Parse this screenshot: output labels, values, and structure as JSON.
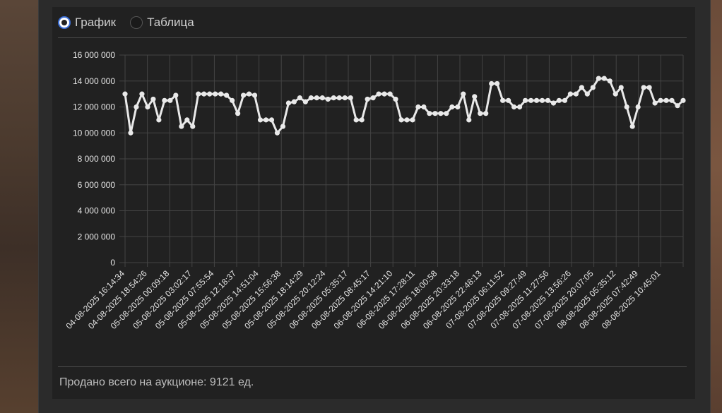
{
  "view_toggle": {
    "options": [
      {
        "label": "График",
        "selected": true
      },
      {
        "label": "Таблица",
        "selected": false
      }
    ]
  },
  "footer": {
    "text": "Продано всего на аукционе: 9121 ед."
  },
  "colors": {
    "line": "#e9e9e9",
    "grid": "#444444",
    "accent": "#3b6fd8"
  },
  "chart_data": {
    "type": "line",
    "ylim": [
      0,
      16000000
    ],
    "yticks": [
      "16 000 000",
      "14 000 000",
      "12 000 000",
      "10 000 000",
      "8 000 000",
      "6 000 000",
      "4 000 000",
      "2 000 000",
      "0"
    ],
    "ytick_values": [
      16000000,
      14000000,
      12000000,
      10000000,
      8000000,
      6000000,
      4000000,
      2000000,
      0
    ],
    "xtick_labels": [
      "04-08-2025 16:14:34",
      "04-08-2025 18:54:26",
      "05-08-2025 00:09:18",
      "05-08-2025 03:02:17",
      "05-08-2025 07:55:54",
      "05-08-2025 12:18:37",
      "05-08-2025 14:51:04",
      "05-08-2025 15:56:38",
      "05-08-2025 18:14:29",
      "05-08-2025 20:12:24",
      "06-08-2025 05:35:17",
      "06-08-2025 08:45:17",
      "06-08-2025 14:21:10",
      "06-08-2025 17:28:11",
      "06-08-2025 18:00:58",
      "06-08-2025 20:33:18",
      "06-08-2025 22:48:13",
      "07-08-2025 06:11:52",
      "07-08-2025 09:27:49",
      "07-08-2025 11:27:56",
      "07-08-2025 13:56:26",
      "07-08-2025 20:07:05",
      "08-08-2025 05:35:12",
      "08-08-2025 07:42:49",
      "08-08-2025 10:45:01"
    ],
    "grid": true,
    "values": [
      13000000,
      10000000,
      12000000,
      13000000,
      12000000,
      12600000,
      11000000,
      12500000,
      12500000,
      12900000,
      10500000,
      11000000,
      10500000,
      13000000,
      13000000,
      13000000,
      13000000,
      13000000,
      12900000,
      12500000,
      11500000,
      12900000,
      13000000,
      12900000,
      11000000,
      11000000,
      11000000,
      10000000,
      10500000,
      12300000,
      12400000,
      12700000,
      12400000,
      12700000,
      12700000,
      12700000,
      12600000,
      12700000,
      12700000,
      12700000,
      12700000,
      11000000,
      11000000,
      12600000,
      12700000,
      13000000,
      13000000,
      13000000,
      12600000,
      11000000,
      11000000,
      11000000,
      12000000,
      12000000,
      11500000,
      11500000,
      11500000,
      11500000,
      12000000,
      12000000,
      13000000,
      11000000,
      12800000,
      11500000,
      11500000,
      13800000,
      13800000,
      12500000,
      12500000,
      12000000,
      12000000,
      12500000,
      12500000,
      12500000,
      12500000,
      12500000,
      12300000,
      12500000,
      12500000,
      13000000,
      13000000,
      13500000,
      13000000,
      13500000,
      14200000,
      14200000,
      14000000,
      13000000,
      13500000,
      12000000,
      10500000,
      12000000,
      13500000,
      13500000,
      12300000,
      12500000,
      12500000,
      12500000,
      12100000,
      12500000
    ]
  }
}
